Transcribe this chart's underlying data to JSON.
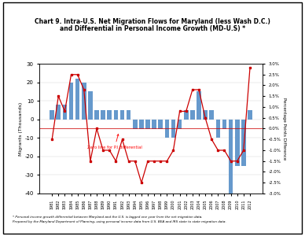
{
  "title_line1": "Chart 9. Intra-U.S. Net Migration Flows for Maryland (less Wash D.C.)",
  "title_line2": "and Differential in Personal Income Growth (MD-U.S) *",
  "years": [
    1981,
    1982,
    1983,
    1984,
    1985,
    1986,
    1987,
    1988,
    1989,
    1990,
    1991,
    1992,
    1993,
    1994,
    1995,
    1996,
    1997,
    1998,
    1999,
    2000,
    2001,
    2002,
    2003,
    2004,
    2005,
    2006,
    2007,
    2008,
    2009,
    2010,
    2011,
    2012
  ],
  "net_migration": [
    5,
    8,
    8,
    20,
    22,
    20,
    15,
    5,
    5,
    5,
    5,
    5,
    5,
    -5,
    -5,
    -5,
    -5,
    -5,
    -10,
    -10,
    -5,
    5,
    5,
    15,
    5,
    5,
    -10,
    -5,
    -40,
    -25,
    -25,
    5
  ],
  "pi_diff": [
    -0.5,
    1.5,
    0.8,
    2.5,
    2.5,
    1.8,
    -1.5,
    0.0,
    -1.0,
    -1.0,
    -1.5,
    -0.5,
    -1.5,
    -1.5,
    -2.5,
    -1.5,
    -1.5,
    -1.5,
    -1.5,
    -1.0,
    0.8,
    0.8,
    1.8,
    1.8,
    0.5,
    -0.5,
    -1.0,
    -1.0,
    -1.5,
    -1.5,
    -1.0,
    2.8
  ],
  "bar_color": "#6699CC",
  "line_color": "#CC0000",
  "ylabel_left": "Migrants (Thousands)",
  "ylabel_right": "Percentage Points Difference",
  "legend_bar": "Net Migration",
  "legend_line": "P.I. Growth Differential (Maryland - U.S.)",
  "zero_label": "Zero line for P.I differential",
  "footnote1": "* Personal income growth differential between Maryland and the U.S. is lagged one year from the net migration data.",
  "footnote2": "Prepared by the Maryland Department of Planning, using personal income data from U.S. BEA and IRS state to state migration data.",
  "ylim_left": [
    -40,
    30
  ],
  "ylim_right": [
    -3.0,
    3.0
  ],
  "yticks_left": [
    30,
    20,
    10,
    0,
    -10,
    -20,
    -30,
    -40
  ],
  "yticks_right": [
    3.0,
    2.5,
    2.0,
    1.5,
    1.0,
    0.5,
    0.0,
    -0.5,
    -1.0,
    -1.5,
    -2.0,
    -2.5,
    -3.0
  ]
}
